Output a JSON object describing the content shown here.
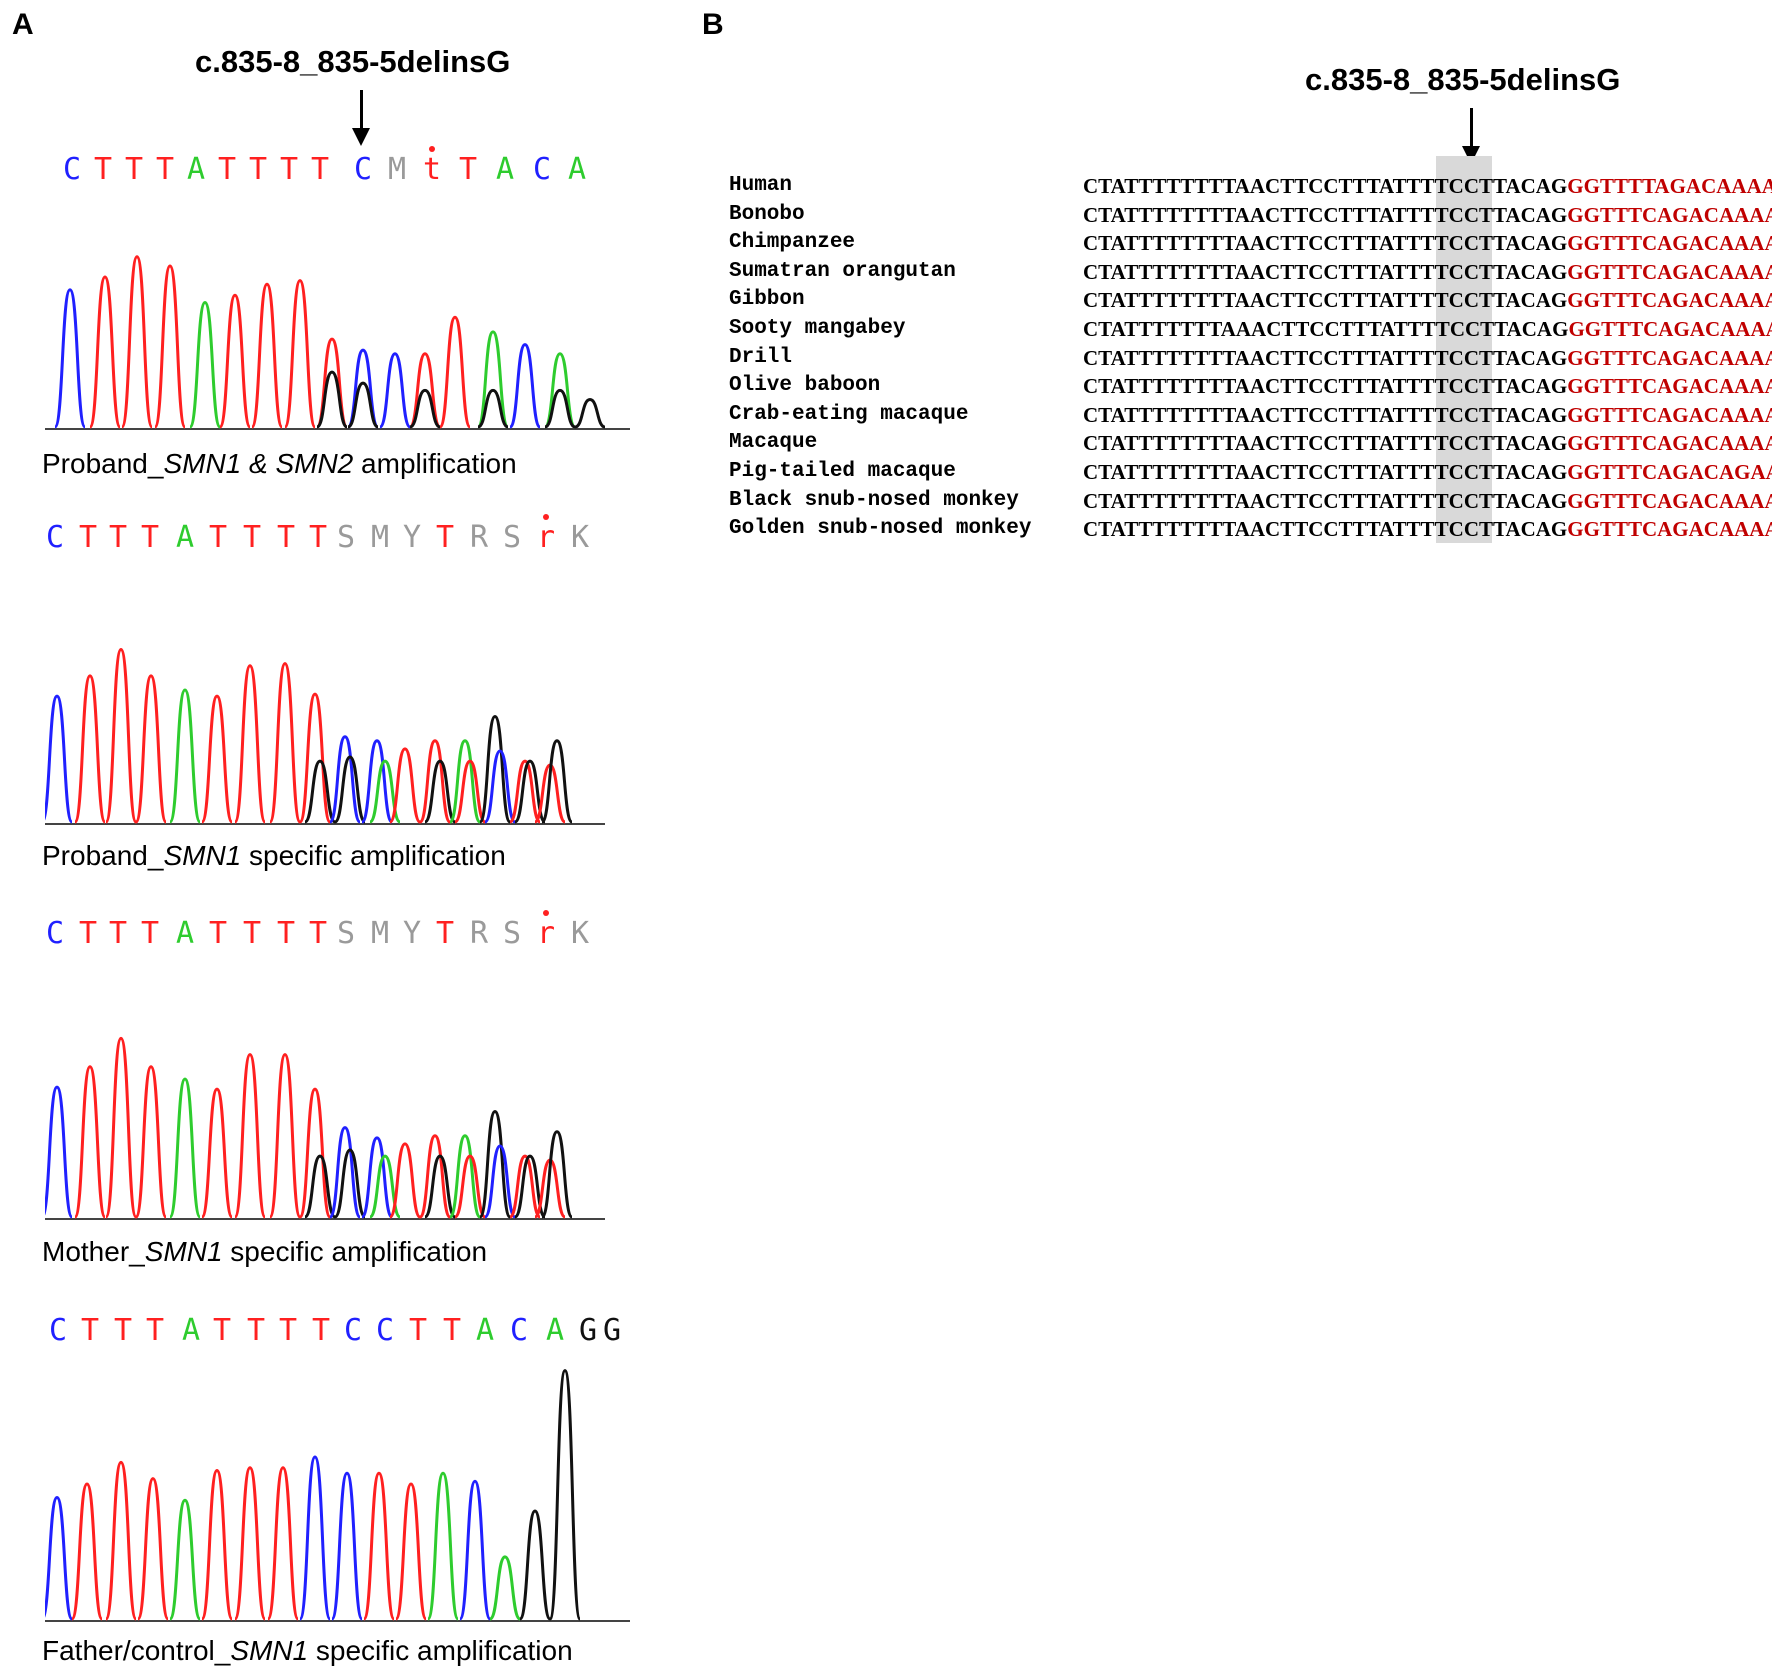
{
  "panel_a": {
    "letter": "A",
    "mutation_label": "c.835-8_835-5delinsG",
    "traces": [
      {
        "bases": "CTTTATTTTCMtTACA",
        "caption_plain_1": "Proband_",
        "caption_italic_1": "SMN1 & SMN2",
        "caption_plain_2": " amplification"
      },
      {
        "bases": "CTTTATTTTSMYTRSrK",
        "caption_plain_1": "Proband_",
        "caption_italic_1": "SMN1",
        "caption_plain_2": " specific amplification"
      },
      {
        "bases": "CTTTATTTTSMYTRSrK",
        "caption_plain_1": "Mother_",
        "caption_italic_1": "SMN1",
        "caption_plain_2": " specific amplification"
      },
      {
        "bases": "CTTTATTTTCCTTACAGG",
        "caption_plain_1": "Father/control_",
        "caption_italic_1": "SMN1",
        "caption_plain_2": " specific amplification"
      }
    ]
  },
  "panel_b": {
    "letter": "B",
    "mutation_label": "c.835-8_835-5delinsG",
    "alignment": [
      {
        "species": "Human",
        "black": "CTATTTTTTTTAACTTCCTTTATTTTCCTTACAG",
        "red": "GGTTTTAGACAAAATC"
      },
      {
        "species": "Bonobo",
        "black": "CTATTTTTTTTAACTTCCTTTATTTTCCTTACAG",
        "red": "GGTTTCAGACAAAATC"
      },
      {
        "species": "Chimpanzee",
        "black": "CTATTTTTTTTAACTTCCTTTATTTTCCTTACAG",
        "red": "GGTTTCAGACAAAATC"
      },
      {
        "species": "Sumatran orangutan",
        "black": "CTATTTTTTTTAACTTCCTTTATTTTCCTTACAG",
        "red": "GGTTTCAGACAAAATC"
      },
      {
        "species": "Gibbon",
        "black": "CTATTTTTTTTAACTTCCTTTATTTTCCTTACAG",
        "red": "GGTTTCAGACAAAATC"
      },
      {
        "species": "Sooty mangabey",
        "black": "CTATTTTTTTAAACTTCCTTTATTTTCCTTACAG",
        "red": "GGTTTCAGACAAAATC"
      },
      {
        "species": "Drill",
        "black": "CTATTTTTTTTAACTTCCTTTATTTTCCTTACAG",
        "red": "GGTTTCAGACAAAATC"
      },
      {
        "species": "Olive baboon",
        "black": "CTATTTTTTTTAACTTCCTTTATTTTCCTTACAG",
        "red": "GGTTTCAGACAAAATC"
      },
      {
        "species": "Crab-eating macaque",
        "black": "CTATTTTTTTTAACTTCCTTTATTTTCCTTACAG",
        "red": "GGTTTCAGACAAAATC"
      },
      {
        "species": "Macaque",
        "black": "CTATTTTTTTTAACTTCCTTTATTTTCCTTACAG",
        "red": "GGTTTCAGACAAAATC"
      },
      {
        "species": "Pig-tailed macaque",
        "black": "CTATTTTTTTTAACTTCCTTTATTTTCCTTACAG",
        "red": "GGTTTCAGACAGAATC"
      },
      {
        "species": "Black snub-nosed monkey",
        "black": "CTATTTTTTTTAACTTCCTTTATTTTCCTTACAG",
        "red": "GGTTTCAGACAAAATC"
      },
      {
        "species": "Golden snub-nosed monkey",
        "black": "CTATTTTTTTTAACTTCCTTTATTTTCCTTACAG",
        "red": "GGTTTCAGACAAAATC"
      }
    ]
  },
  "colors": {
    "A": "#2ecc2e",
    "C": "#2020ff",
    "G": "#111111",
    "T": "#ff2020",
    "ambiguous": "#9a9a9a",
    "highlight": "#d9d9d9",
    "red_sequence": "#c00000"
  }
}
